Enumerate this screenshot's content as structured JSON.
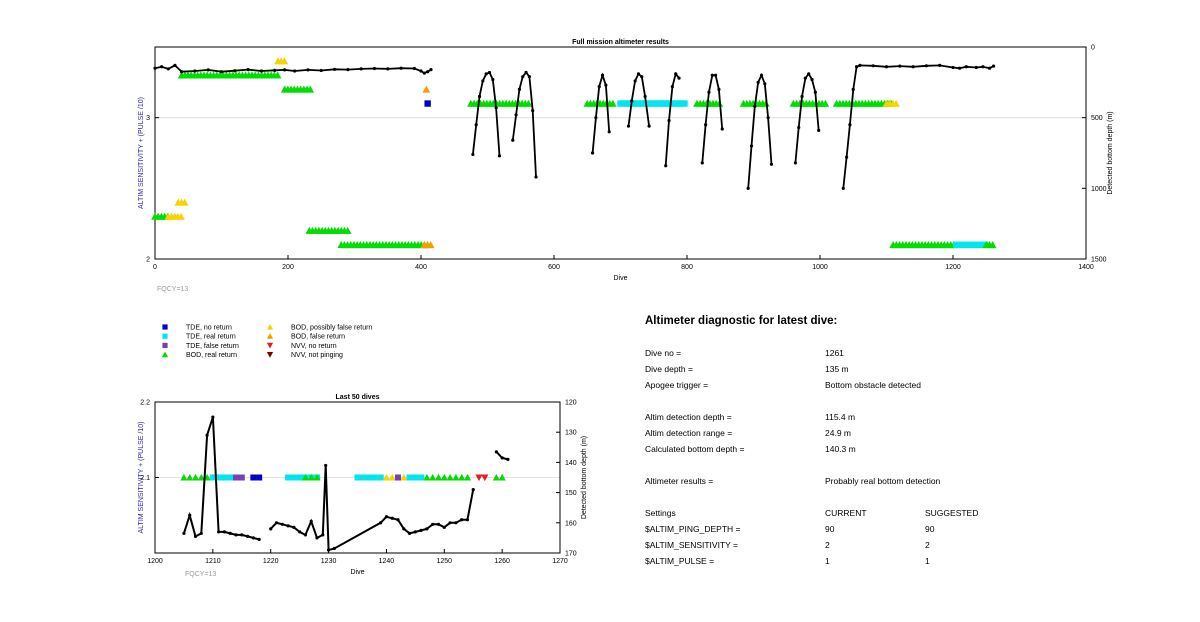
{
  "legend": [
    {
      "label": "TDE, no return",
      "marker": "square",
      "color": "#0000cc"
    },
    {
      "label": "TDE, real return",
      "marker": "square",
      "color": "#00e5ee"
    },
    {
      "label": "TDE, false return",
      "marker": "square",
      "color": "#7a3fb5"
    },
    {
      "label": "BOD, real return",
      "marker": "triangle-up",
      "color": "#00dd00"
    },
    {
      "label": "BOD, possibly false return",
      "marker": "triangle-up",
      "color": "#f5d400"
    },
    {
      "label": "BOD, false return",
      "marker": "triangle-up",
      "color": "#f0a000"
    },
    {
      "label": "NVV, no return",
      "marker": "triangle-down",
      "color": "#e02020"
    },
    {
      "label": "NVV, not pinging",
      "marker": "triangle-down",
      "color": "#7a0000"
    }
  ],
  "colors": {
    "depth_line": "#000000",
    "left_axis_label": "#2a2ab8",
    "fqcy_text": "#9a9a9a"
  },
  "chart_data": [
    {
      "type": "scatter",
      "title": "Full mission altimeter results",
      "xlabel": "Dive",
      "ylabel": "ALTIM SENSITIVITY + (PULSE /10)",
      "y2label": "Detected bottom depth (m)",
      "xlim": [
        0,
        1400
      ],
      "ylim": [
        2,
        3.5
      ],
      "y2lim": [
        0,
        1500
      ],
      "y2_reversed": true,
      "xticks": [
        "0",
        "200",
        "400",
        "600",
        "800",
        "1000",
        "1200",
        "1400"
      ],
      "yticks": [
        "2",
        "3"
      ],
      "y2ticks": [
        "0",
        "500",
        "1000",
        "1500"
      ],
      "grid": true,
      "note": "FQCY=13",
      "depth_series": [
        [
          0,
          150
        ],
        [
          10,
          140
        ],
        [
          20,
          155
        ],
        [
          30,
          130
        ],
        [
          40,
          175
        ],
        [
          60,
          170
        ],
        [
          80,
          162
        ],
        [
          100,
          175
        ],
        [
          120,
          168
        ],
        [
          140,
          160
        ],
        [
          160,
          170
        ],
        [
          180,
          165
        ],
        [
          195,
          162
        ],
        [
          210,
          170
        ],
        [
          230,
          162
        ],
        [
          250,
          166
        ],
        [
          270,
          158
        ],
        [
          290,
          160
        ],
        [
          310,
          155
        ],
        [
          330,
          152
        ],
        [
          350,
          155
        ],
        [
          370,
          150
        ],
        [
          390,
          152
        ],
        [
          400,
          170
        ],
        [
          405,
          185
        ],
        [
          410,
          175
        ],
        [
          415,
          160
        ],
        null,
        [
          478,
          760
        ],
        [
          483,
          550
        ],
        [
          488,
          350
        ],
        [
          493,
          240
        ],
        [
          498,
          190
        ],
        [
          503,
          180
        ],
        [
          508,
          230
        ],
        [
          513,
          430
        ],
        [
          518,
          770
        ],
        null,
        [
          538,
          660
        ],
        [
          543,
          480
        ],
        [
          548,
          300
        ],
        [
          553,
          210
        ],
        [
          558,
          180
        ],
        [
          563,
          210
        ],
        [
          568,
          450
        ],
        [
          573,
          920
        ],
        null,
        [
          658,
          750
        ],
        [
          663,
          500
        ],
        [
          668,
          280
        ],
        [
          673,
          200
        ],
        [
          678,
          270
        ],
        [
          683,
          600
        ],
        null,
        [
          712,
          560
        ],
        [
          717,
          380
        ],
        [
          722,
          240
        ],
        [
          727,
          190
        ],
        [
          732,
          210
        ],
        [
          737,
          350
        ],
        [
          743,
          560
        ],
        null,
        [
          768,
          840
        ],
        [
          773,
          520
        ],
        [
          778,
          280
        ],
        [
          783,
          190
        ],
        [
          788,
          220
        ],
        null,
        [
          823,
          820
        ],
        [
          828,
          550
        ],
        [
          833,
          320
        ],
        [
          838,
          200
        ],
        [
          843,
          200
        ],
        [
          848,
          300
        ],
        [
          853,
          580
        ],
        null,
        [
          892,
          1000
        ],
        [
          897,
          700
        ],
        [
          902,
          420
        ],
        [
          907,
          250
        ],
        [
          912,
          200
        ],
        [
          917,
          260
        ],
        [
          922,
          500
        ],
        [
          927,
          830
        ],
        null,
        [
          963,
          820
        ],
        [
          968,
          570
        ],
        [
          973,
          350
        ],
        [
          978,
          220
        ],
        [
          983,
          190
        ],
        [
          988,
          230
        ],
        [
          993,
          320
        ],
        [
          998,
          590
        ],
        null,
        [
          1035,
          1000
        ],
        [
          1040,
          780
        ],
        [
          1045,
          550
        ],
        [
          1050,
          300
        ],
        [
          1055,
          140
        ],
        [
          1060,
          130
        ],
        [
          1080,
          133
        ],
        [
          1100,
          140
        ],
        [
          1120,
          135
        ],
        [
          1140,
          140
        ],
        [
          1160,
          133
        ],
        [
          1180,
          130
        ],
        [
          1200,
          145
        ],
        [
          1210,
          150
        ],
        [
          1220,
          140
        ],
        [
          1235,
          145
        ],
        [
          1245,
          140
        ],
        [
          1255,
          150
        ],
        [
          1261,
          135
        ]
      ],
      "events": [
        {
          "dive_range": [
            0,
            20
          ],
          "y": 2.3,
          "kind": "BOD, real return"
        },
        {
          "dive_range": [
            20,
            40
          ],
          "y": 2.3,
          "kind": "BOD, possibly false return"
        },
        {
          "dive_range": [
            35,
            45
          ],
          "y": 2.4,
          "kind": "BOD, possibly false return"
        },
        {
          "dive_range": [
            40,
            185
          ],
          "y": 3.3,
          "kind": "BOD, real return"
        },
        {
          "dive_range": [
            185,
            195
          ],
          "y": 3.4,
          "kind": "BOD, possibly false return"
        },
        {
          "dive_range": [
            195,
            235
          ],
          "y": 3.2,
          "kind": "BOD, real return"
        },
        {
          "dive_range": [
            232,
            290
          ],
          "y": 2.2,
          "kind": "BOD, real return"
        },
        {
          "dive_range": [
            280,
            410
          ],
          "y": 2.1,
          "kind": "BOD, real return"
        },
        {
          "dive_range": [
            405,
            415
          ],
          "y": 2.1,
          "kind": "BOD, false return"
        },
        {
          "dive_range": [
            408,
            412
          ],
          "y": 3.2,
          "kind": "BOD, false return"
        },
        {
          "dive_range": [
            410,
            413
          ],
          "y": 3.1,
          "kind": "TDE, no return"
        },
        {
          "dive_range": [
            475,
            565
          ],
          "y": 3.1,
          "kind": "BOD, real return"
        },
        {
          "dive_range": [
            650,
            690
          ],
          "y": 3.1,
          "kind": "BOD, real return"
        },
        {
          "dive_range": [
            700,
            800
          ],
          "y": 3.1,
          "kind": "TDE, real return"
        },
        {
          "dive_range": [
            815,
            850
          ],
          "y": 3.1,
          "kind": "BOD, real return"
        },
        {
          "dive_range": [
            885,
            920
          ],
          "y": 3.1,
          "kind": "BOD, real return"
        },
        {
          "dive_range": [
            960,
            1010
          ],
          "y": 3.1,
          "kind": "BOD, real return"
        },
        {
          "dive_range": [
            1025,
            1110
          ],
          "y": 3.1,
          "kind": "BOD, real return"
        },
        {
          "dive_range": [
            1100,
            1115
          ],
          "y": 3.1,
          "kind": "BOD, possibly false return"
        },
        {
          "dive_range": [
            1110,
            1205
          ],
          "y": 2.1,
          "kind": "BOD, real return"
        },
        {
          "dive_range": [
            1205,
            1250
          ],
          "y": 2.1,
          "kind": "TDE, real return"
        },
        {
          "dive_range": [
            1250,
            1262
          ],
          "y": 2.1,
          "kind": "BOD, real return"
        }
      ]
    },
    {
      "type": "scatter",
      "title": "Last 50 dives",
      "xlabel": "Dive",
      "ylabel": "ALTIM SENSITIVITY + (PULSE /10)",
      "y2label": "Detected bottom depth (m)",
      "xlim": [
        1200,
        1270
      ],
      "ylim": [
        2,
        2.2
      ],
      "y2lim": [
        120,
        170
      ],
      "y2_reversed": true,
      "xticks": [
        "1200",
        "1210",
        "1220",
        "1230",
        "1240",
        "1250",
        "1260",
        "1270"
      ],
      "yticks": [
        "2.1",
        "2.2"
      ],
      "y2ticks": [
        "120",
        "130",
        "140",
        "150",
        "160",
        "170"
      ],
      "grid": true,
      "note": "FQCY=13",
      "depth_series": [
        [
          1205,
          163.5
        ],
        [
          1206,
          157.5
        ],
        [
          1207,
          164.5
        ],
        [
          1208,
          163.5
        ],
        [
          1209,
          131
        ],
        [
          1210,
          125
        ],
        [
          1211,
          163
        ],
        [
          1212,
          163
        ],
        [
          1213,
          163.5
        ],
        [
          1214,
          164
        ],
        [
          1215,
          164
        ],
        [
          1216,
          164.5
        ],
        [
          1217,
          165
        ],
        [
          1218,
          165.5
        ],
        null,
        [
          1220,
          162
        ],
        [
          1221,
          160
        ],
        [
          1222,
          160.5
        ],
        [
          1223,
          161
        ],
        [
          1224,
          161.5
        ],
        [
          1225,
          163
        ],
        [
          1226,
          164
        ],
        [
          1227,
          159.5
        ],
        [
          1228,
          165
        ],
        [
          1229,
          164
        ],
        [
          1229.5,
          141
        ],
        [
          1230,
          169
        ],
        [
          1231,
          168.5
        ],
        [
          1239,
          160
        ],
        [
          1240,
          158
        ],
        [
          1241,
          158.5
        ],
        [
          1242,
          159
        ],
        [
          1243,
          162
        ],
        [
          1244,
          163.5
        ],
        [
          1245,
          163
        ],
        [
          1246,
          162.5
        ],
        [
          1247,
          162
        ],
        [
          1248,
          160.5
        ],
        [
          1249,
          160.5
        ],
        [
          1250,
          161.5
        ],
        [
          1251,
          160
        ],
        [
          1252,
          160
        ],
        [
          1253,
          159
        ],
        [
          1254,
          159
        ],
        [
          1255,
          149
        ],
        null,
        [
          1259,
          136.5
        ],
        [
          1260,
          138.5
        ],
        [
          1261,
          139
        ]
      ],
      "events": [
        {
          "dive_range": [
            1205,
            1212
          ],
          "y": 2.1,
          "kind": "BOD, real return"
        },
        {
          "dive_range": [
            1210,
            1214
          ],
          "y": 2.1,
          "kind": "TDE, real return"
        },
        {
          "dive_range": [
            1214,
            1216
          ],
          "y": 2.1,
          "kind": "TDE, false return"
        },
        {
          "dive_range": [
            1217,
            1219
          ],
          "y": 2.1,
          "kind": "TDE, no return"
        },
        {
          "dive_range": [
            1223,
            1229
          ],
          "y": 2.1,
          "kind": "TDE, real return"
        },
        {
          "dive_range": [
            1226,
            1229
          ],
          "y": 2.1,
          "kind": "BOD, real return"
        },
        {
          "dive_range": [
            1235,
            1240
          ],
          "y": 2.1,
          "kind": "TDE, real return"
        },
        {
          "dive_range": [
            1240,
            1244
          ],
          "y": 2.1,
          "kind": "BOD, possibly false return"
        },
        {
          "dive_range": [
            1242,
            1243
          ],
          "y": 2.1,
          "kind": "TDE, false return"
        },
        {
          "dive_range": [
            1244,
            1247
          ],
          "y": 2.1,
          "kind": "TDE, real return"
        },
        {
          "dive_range": [
            1247,
            1255
          ],
          "y": 2.1,
          "kind": "BOD, real return"
        },
        {
          "dive_range": [
            1256,
            1258
          ],
          "y": 2.1,
          "kind": "NVV, no return"
        },
        {
          "dive_range": [
            1259,
            1261
          ],
          "y": 2.1,
          "kind": "BOD, real return"
        }
      ]
    }
  ],
  "diagnostic": {
    "title": "Altimeter diagnostic for latest dive:",
    "rows": [
      {
        "label": "Dive no =",
        "value": "1261"
      },
      {
        "label": "Dive depth =",
        "value": "135 m"
      },
      {
        "label": "Apogee trigger =",
        "value": "Bottom obstacle detected"
      },
      {
        "label": "Altim detection depth =",
        "value": "115.4 m"
      },
      {
        "label": "Altim detection range =",
        "value": "24.9 m"
      },
      {
        "label": "Calculated bottom depth =",
        "value": "140.3 m"
      },
      {
        "label": "Altimeter results =",
        "value": "Probably real bottom detection"
      }
    ],
    "settings_header": {
      "label": "Settings",
      "current": "CURRENT",
      "suggested": "SUGGESTED"
    },
    "settings": [
      {
        "name": "$ALTIM_PING_DEPTH =",
        "current": "90",
        "suggested": "90"
      },
      {
        "name": "$ALTIM_SENSITIVITY =",
        "current": "2",
        "suggested": "2"
      },
      {
        "name": "$ALTIM_PULSE =",
        "current": "1",
        "suggested": "1"
      }
    ]
  }
}
